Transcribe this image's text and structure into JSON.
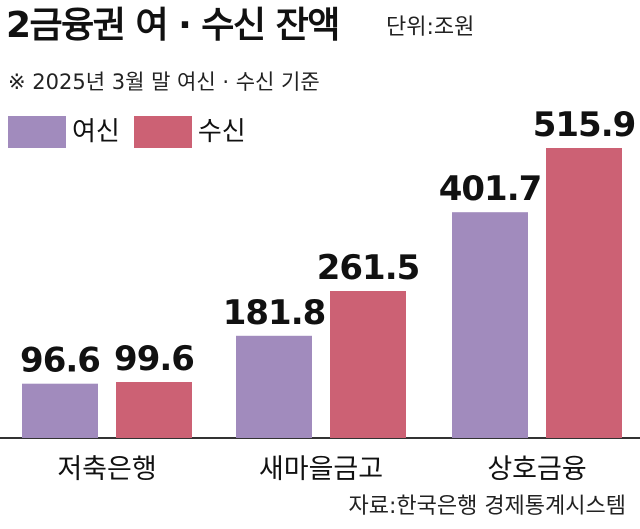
{
  "title": "2금융권 여 · 수신 잔액",
  "unit": "단위:조원",
  "note": "※  2025년 3월 말 여신 · 수신 기준",
  "source": "자료:한국은행 경제통계시스템",
  "colors": {
    "loans": "#a18bbd",
    "deposits": "#cc6174",
    "axis": "#333333"
  },
  "chart_data": {
    "type": "bar",
    "title": "2금융권 여 · 수신 잔액",
    "xlabel": "",
    "ylabel": "",
    "categories": [
      "저축은행",
      "새마을금고",
      "상호금융"
    ],
    "series": [
      {
        "name": "여신",
        "values": [
          96.6,
          181.8,
          401.7
        ]
      },
      {
        "name": "수신",
        "values": [
          99.6,
          261.5,
          515.9
        ]
      }
    ],
    "value_labels": [
      [
        "96.6",
        "181.8",
        "401.7"
      ],
      [
        "99.6",
        "261.5",
        "515.9"
      ]
    ],
    "ylim": [
      0,
      560
    ],
    "grid": false,
    "legend": "top-left"
  }
}
